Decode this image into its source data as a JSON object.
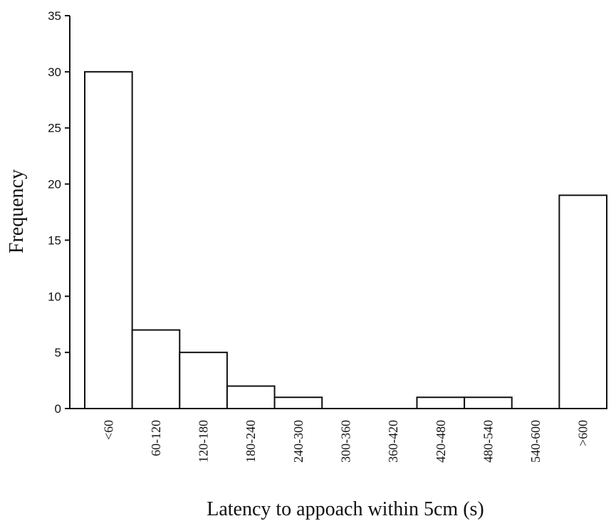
{
  "chart_data": {
    "type": "bar",
    "title": "",
    "xlabel": "Latency to appoach within 5cm (s)",
    "ylabel": "Frequency",
    "categories": [
      "<60",
      "60-120",
      "120-180",
      "180-240",
      "240-300",
      "300-360",
      "360-420",
      "420-480",
      "480-540",
      "540-600",
      ">600"
    ],
    "values": [
      30,
      7,
      5,
      2,
      1,
      0,
      0,
      1,
      1,
      0,
      19
    ],
    "ylim": [
      0,
      35
    ],
    "yticks": [
      0,
      5,
      10,
      15,
      20,
      25,
      30,
      35
    ],
    "grid": false,
    "legend": "none",
    "colors": {
      "bar_fill": "#ffffff",
      "bar_stroke": "#111111"
    }
  }
}
